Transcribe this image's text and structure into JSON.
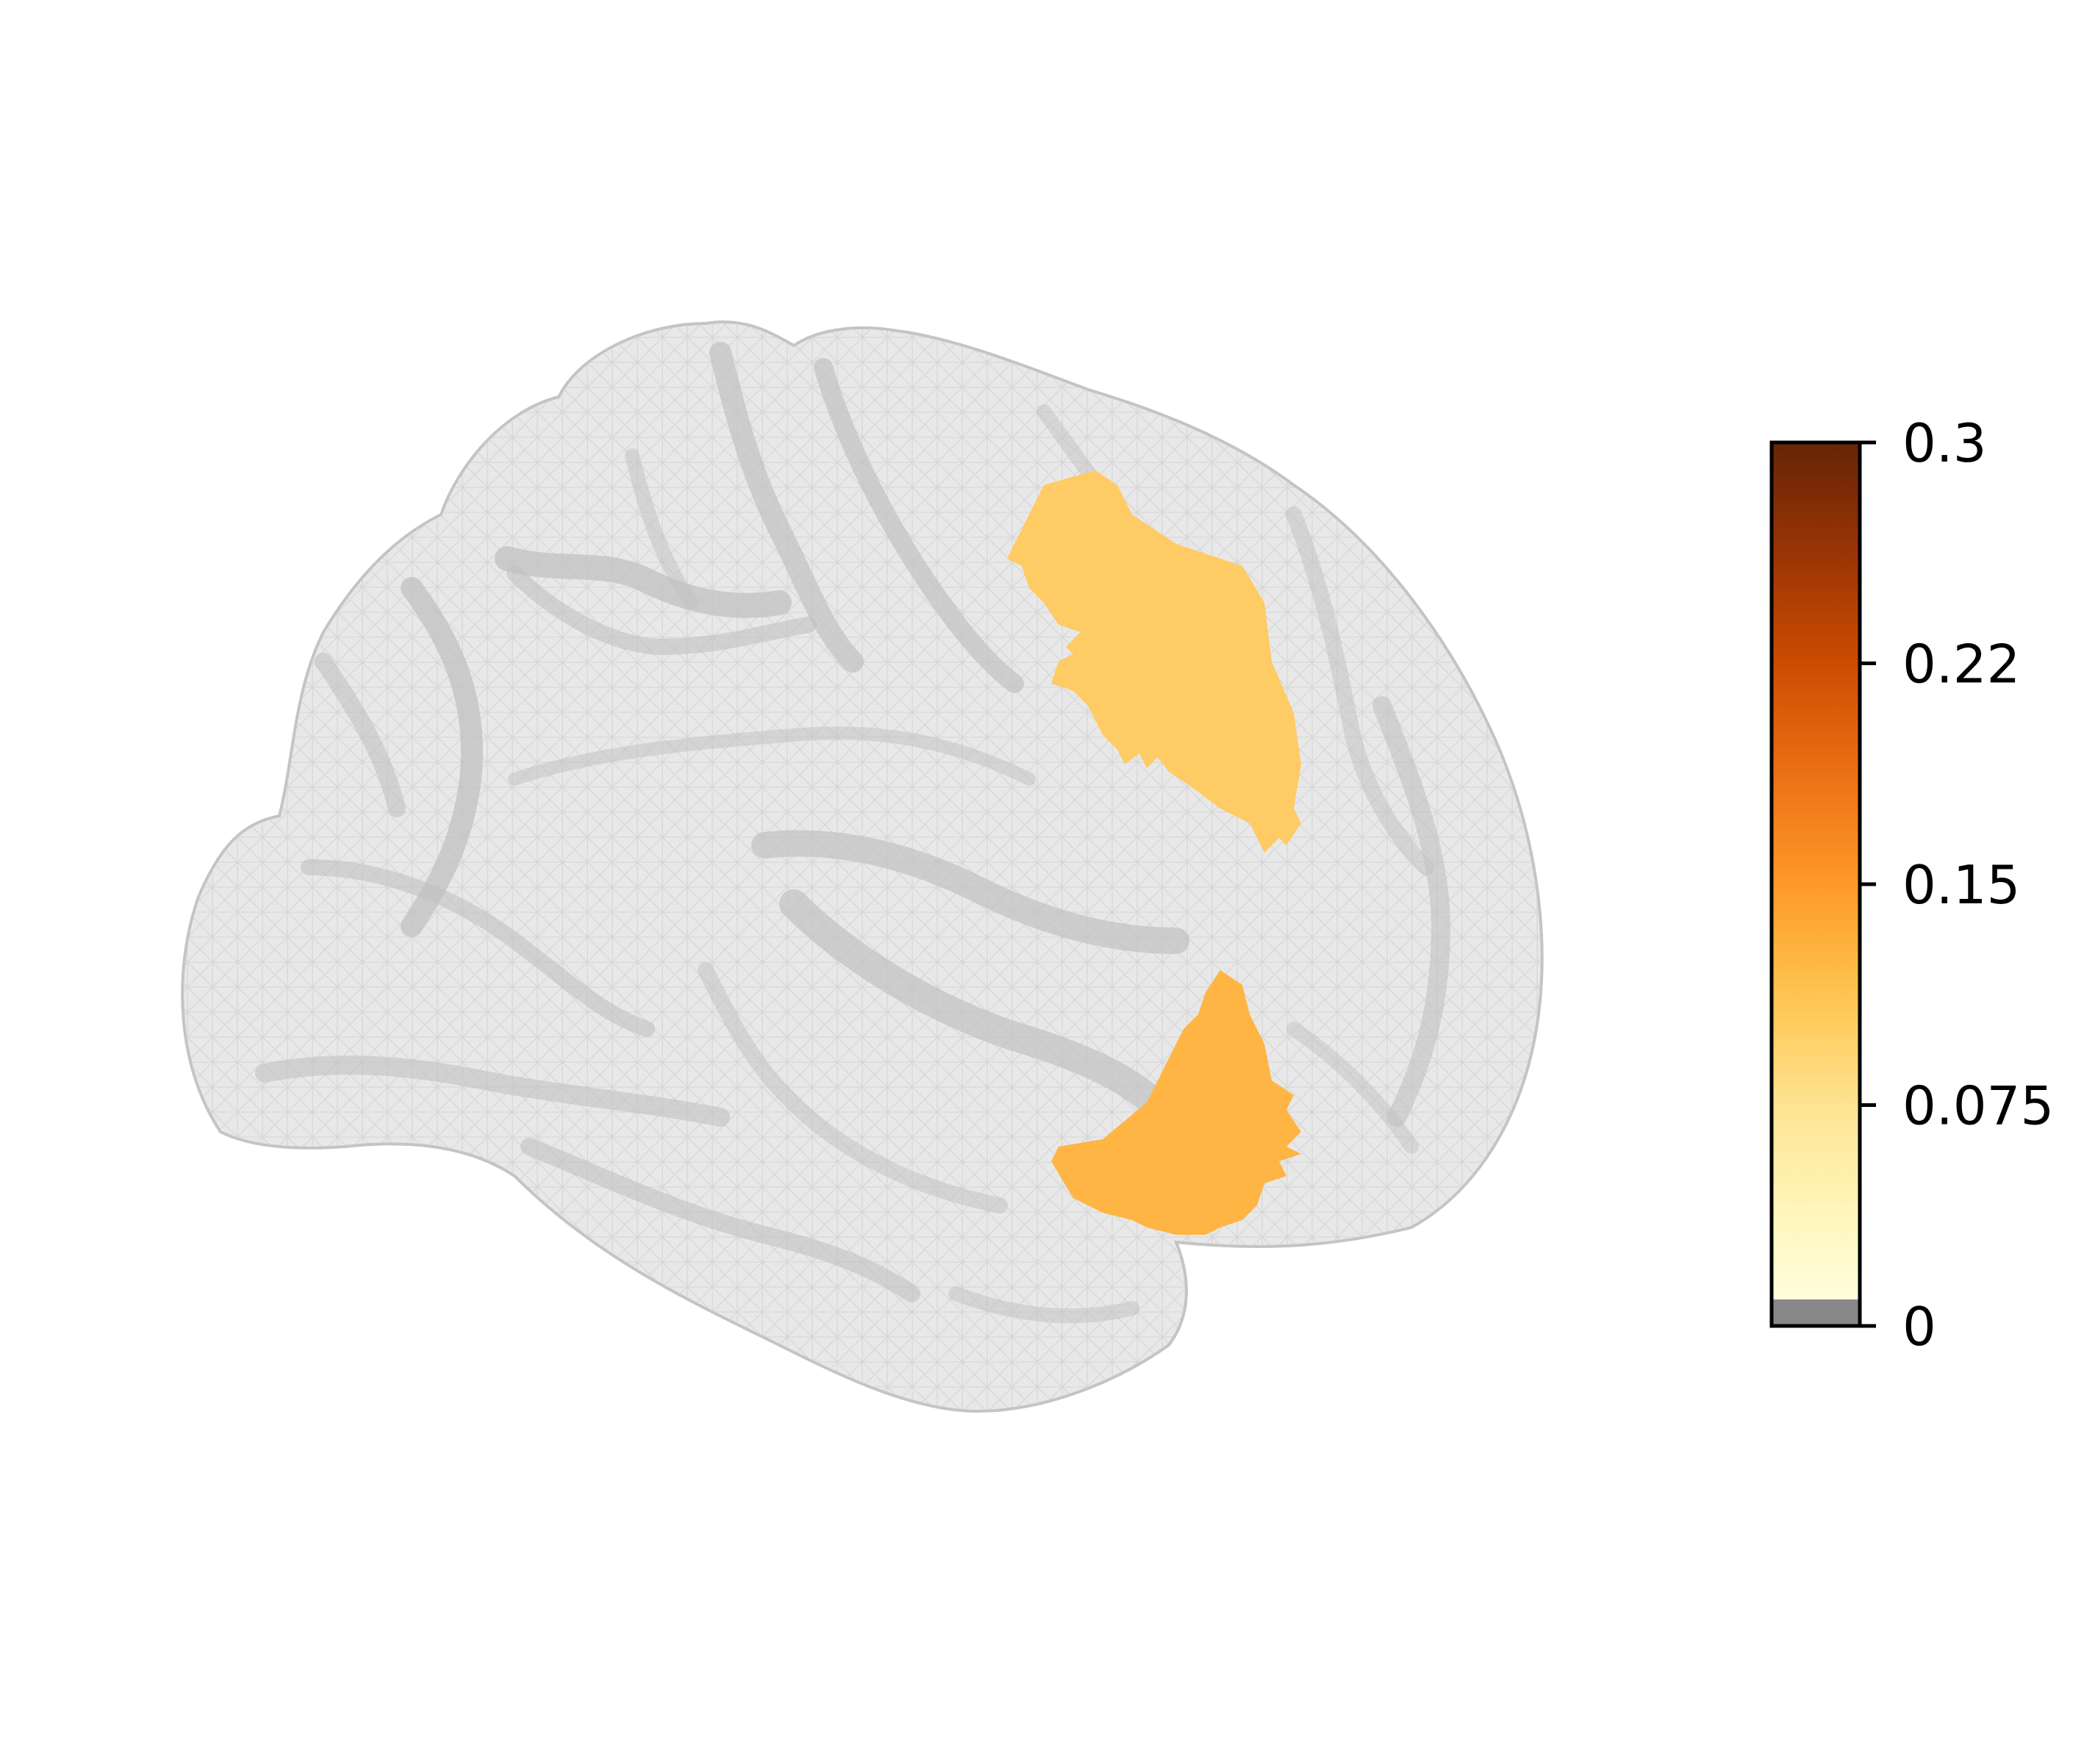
{
  "figure": {
    "background": "#ffffff",
    "brain_surface_color": "#e6e6e6",
    "brain_mesh_color": "#bdbdbd",
    "brain_fold_color": "#c8c8c8"
  },
  "regions": [
    {
      "id": "superior-region",
      "value": 0.09,
      "color": "#fecb64"
    },
    {
      "id": "inferior-region",
      "value": 0.12,
      "color": "#feb544"
    }
  ],
  "colorbar": {
    "min": 0,
    "max": 0.3,
    "ticks": [
      {
        "value": 0,
        "label": "0"
      },
      {
        "value": 0.075,
        "label": "0.075"
      },
      {
        "value": 0.15,
        "label": "0.15"
      },
      {
        "value": 0.225,
        "label": "0.22"
      },
      {
        "value": 0.3,
        "label": "0.3"
      }
    ],
    "colormap": [
      "#ffffe5",
      "#fff7bc",
      "#fee391",
      "#fec44f",
      "#fe9929",
      "#ec7014",
      "#cc4c02",
      "#993404",
      "#662506"
    ],
    "under_color": "#888888",
    "under_fraction": 0.03
  }
}
